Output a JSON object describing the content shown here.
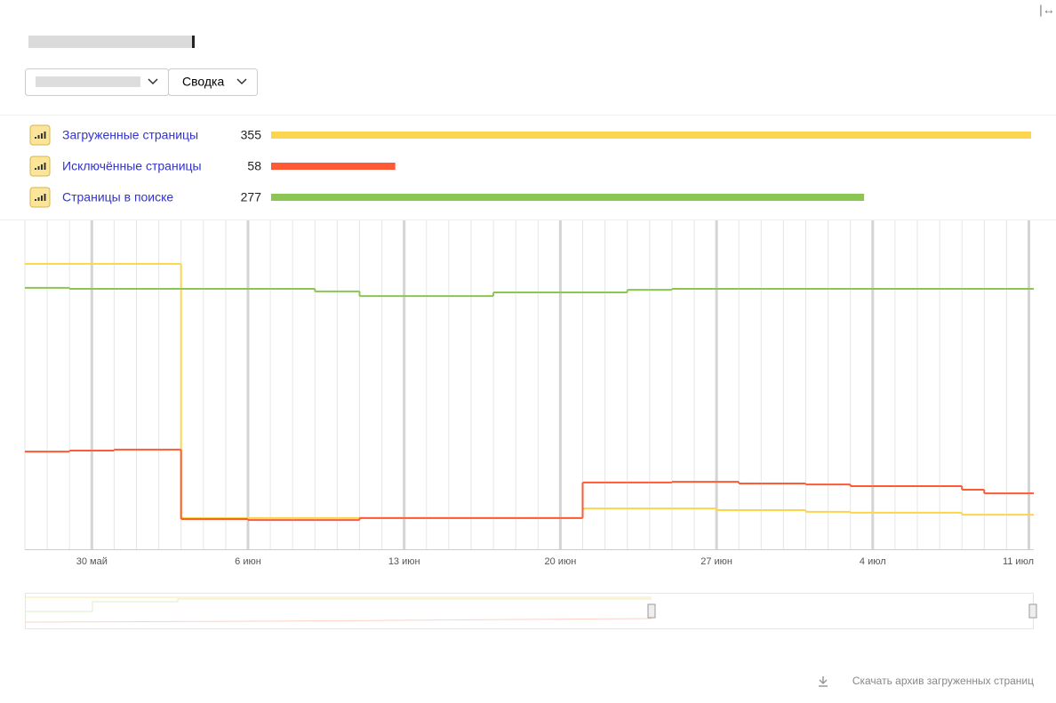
{
  "toolbar": {
    "view": "Сводка"
  },
  "chart_data": {
    "type": "line",
    "step": true,
    "categories": [
      null,
      null,
      null,
      "30 май",
      null,
      null,
      null,
      null,
      null,
      null,
      "6 июн",
      null,
      null,
      null,
      null,
      null,
      null,
      "13 июн",
      null,
      null,
      null,
      null,
      null,
      null,
      "20 июн",
      null,
      null,
      null,
      null,
      null,
      null,
      "27 июн",
      null,
      null,
      null,
      null,
      null,
      null,
      "4 июл",
      null,
      null,
      null,
      null,
      null,
      null,
      "11 июл"
    ],
    "ylim": [
      0,
      100
    ],
    "grid": true,
    "series": [
      {
        "name": "Загруженные страницы",
        "total": 355,
        "color": "#fcd54f",
        "values": [
          86.8,
          86.8,
          86.8,
          86.8,
          86.8,
          86.8,
          86.8,
          9.5,
          9.5,
          9.5,
          9.5,
          9.5,
          9.5,
          9.5,
          9.5,
          9.5,
          9.5,
          9.5,
          9.5,
          9.5,
          9.5,
          9.5,
          9.5,
          9.5,
          9.5,
          12.4,
          12.4,
          12.4,
          12.4,
          12.4,
          12.4,
          11.9,
          11.9,
          11.9,
          11.9,
          11.4,
          11.4,
          11.1,
          11.1,
          11.1,
          11.1,
          11.1,
          10.5,
          10.5,
          10.5,
          10.5
        ]
      },
      {
        "name": "Исключённые страницы",
        "total": 58,
        "color": "#fe5a35",
        "values": [
          29.7,
          29.7,
          30.0,
          30.0,
          30.3,
          30.3,
          30.3,
          9.2,
          9.2,
          9.2,
          8.9,
          8.9,
          8.9,
          8.9,
          8.9,
          9.5,
          9.5,
          9.5,
          9.5,
          9.5,
          9.5,
          9.5,
          9.5,
          9.5,
          9.5,
          20.3,
          20.3,
          20.3,
          20.3,
          20.5,
          20.5,
          20.5,
          20.0,
          20.0,
          20.0,
          19.7,
          19.7,
          19.2,
          19.2,
          19.2,
          19.2,
          19.2,
          18.1,
          17.0,
          17.0,
          17.0
        ]
      },
      {
        "name": "Страницы в поиске",
        "total": 277,
        "color": "#8bc552",
        "values": [
          79.5,
          79.5,
          79.2,
          79.2,
          79.2,
          79.2,
          79.2,
          79.2,
          79.2,
          79.2,
          79.2,
          79.2,
          79.2,
          78.4,
          78.4,
          77.0,
          77.0,
          77.0,
          77.0,
          77.0,
          77.0,
          78.1,
          78.1,
          78.1,
          78.1,
          78.1,
          78.1,
          78.9,
          78.9,
          79.2,
          79.2,
          79.2,
          79.2,
          79.2,
          79.2,
          79.2,
          79.2,
          79.2,
          79.2,
          79.2,
          79.2,
          79.2,
          79.2,
          79.2,
          79.2,
          79.2
        ]
      }
    ]
  },
  "download_link": "Скачать архив загруженных страниц"
}
